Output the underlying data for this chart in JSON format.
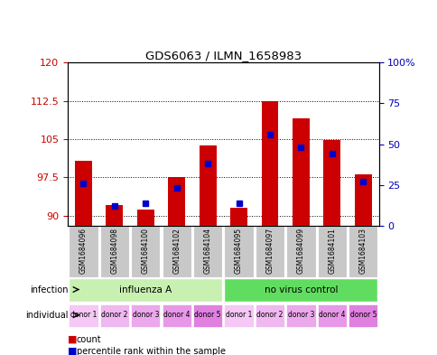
{
  "title": "GDS6063 / ILMN_1658983",
  "samples": [
    "GSM1684096",
    "GSM1684098",
    "GSM1684100",
    "GSM1684102",
    "GSM1684104",
    "GSM1684095",
    "GSM1684097",
    "GSM1684099",
    "GSM1684101",
    "GSM1684103"
  ],
  "count_values": [
    100.7,
    92.0,
    91.2,
    97.5,
    103.8,
    91.5,
    112.5,
    109.0,
    104.8,
    98.0
  ],
  "percentile_values": [
    26,
    12,
    14,
    23,
    38,
    14,
    56,
    48,
    44,
    27
  ],
  "ylim_left": [
    88,
    120
  ],
  "ylim_right": [
    0,
    100
  ],
  "yticks_left": [
    90,
    97.5,
    105,
    112.5,
    120
  ],
  "yticks_right": [
    0,
    25,
    50,
    75,
    100
  ],
  "infection_groups": [
    {
      "label": "influenza A",
      "start": 0,
      "end": 4,
      "color": "#c8f0b0"
    },
    {
      "label": "no virus control",
      "start": 5,
      "end": 9,
      "color": "#60dd60"
    }
  ],
  "individual_labels": [
    "donor 1",
    "donor 2",
    "donor 3",
    "donor 4",
    "donor 5",
    "donor 1",
    "donor 2",
    "donor 3",
    "donor 4",
    "donor 5"
  ],
  "individual_colors": [
    "#f5c8f5",
    "#f0b8f0",
    "#eba8eb",
    "#e898e8",
    "#e080e0",
    "#f5c8f5",
    "#f0b8f0",
    "#eba8eb",
    "#e898e8",
    "#e080e0"
  ],
  "bar_color": "#cc0000",
  "marker_color": "#0000cc",
  "bar_width": 0.55,
  "sample_box_color": "#c8c8c8",
  "left_label_color": "#cc0000",
  "right_label_color": "#0000bb"
}
